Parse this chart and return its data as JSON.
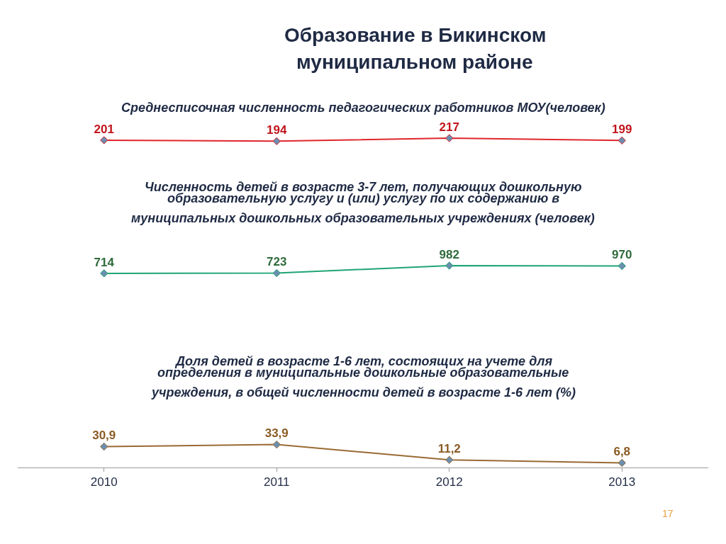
{
  "chart_data": [
    {
      "type": "line",
      "title": "Образование в Бикинском муниципальном районе",
      "subtitle": "Среднесписочная численность педагогических работников МОУ(человек)",
      "categories": [
        "2010",
        "2011",
        "2012",
        "2013"
      ],
      "tick_labels": false,
      "marker": "diamond",
      "data_labels": true,
      "series": [
        {
          "color": "#e0262b",
          "values": [
            201,
            194,
            217,
            199
          ]
        }
      ]
    },
    {
      "type": "line",
      "title": "Численность детей в возрасте 3-7 лет, получающих дошкольную образовательную услугу и (или) услугу по их содержанию в муниципальных дошкольных образовательных учреждениях (человек)",
      "categories": [
        "2010",
        "2011",
        "2012",
        "2013"
      ],
      "tick_labels": false,
      "marker": "diamond",
      "data_labels": true,
      "series": [
        {
          "color": "#1fa574",
          "values": [
            714,
            723,
            982,
            970
          ]
        }
      ]
    },
    {
      "type": "line",
      "title": "Доля детей в возрасте 1-6 лет, состоящих на учете для определения в муниципальные дошкольные образовательные учреждения, в общей численности детей в возрасте 1-6 лет (%)",
      "categories": [
        "2010",
        "2011",
        "2012",
        "2013"
      ],
      "tick_labels": "x",
      "marker": "diamond",
      "annotations": [
        "17"
      ],
      "series": [
        {
          "color": "#9a6a34",
          "values": [
            30.9,
            33.9,
            11.2,
            6.8
          ],
          "value_labels": [
            "30,9",
            "33,9",
            "11,2",
            "6,8"
          ]
        }
      ]
    }
  ]
}
